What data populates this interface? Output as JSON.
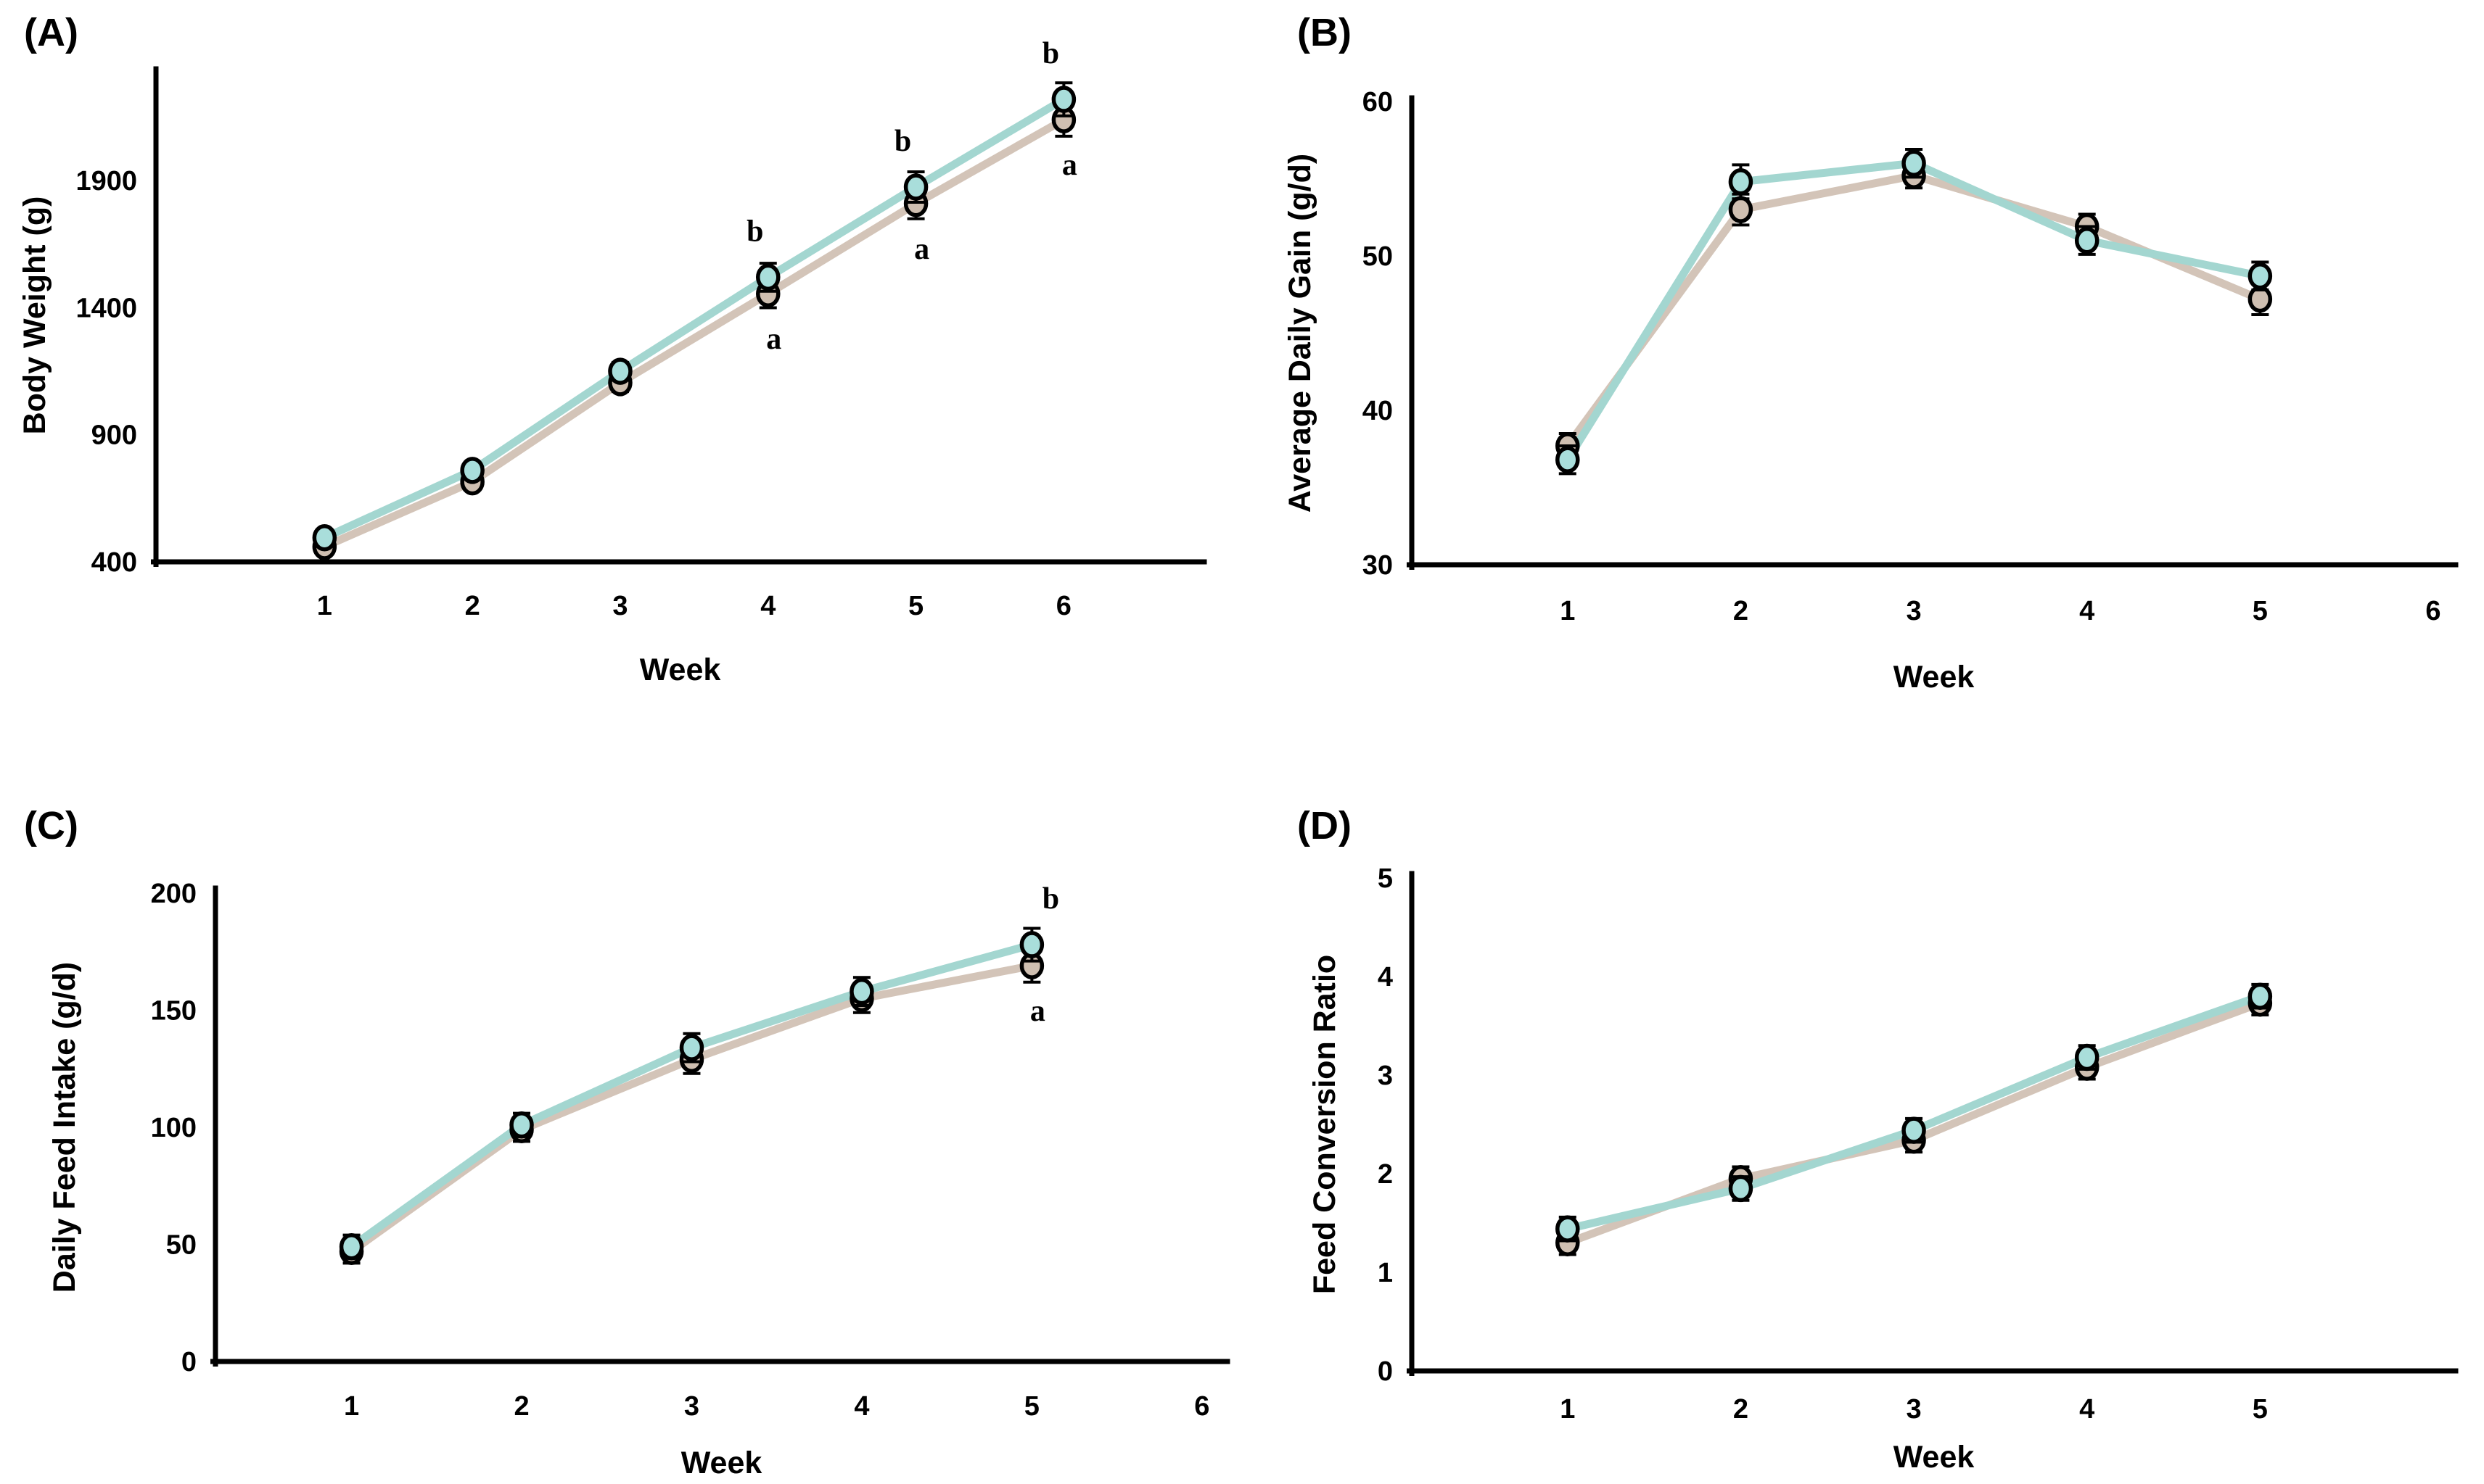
{
  "figure": {
    "background": "#ffffff",
    "description_visible_text_only": true
  },
  "colors": {
    "teal_line": "#a3d6d0",
    "teal_fill": "#a9dedb",
    "tan_line": "#d3c4b8",
    "tan_fill": "#cfbfb1",
    "marker_outline": "#000000",
    "error_bar": "#000000",
    "axis": "#000000",
    "text": "#000000"
  },
  "chart_data": [
    {
      "id": "A",
      "panel_label": "(A)",
      "type": "line",
      "xlabel": "Week",
      "ylabel": "Body Weight (g)",
      "x": [
        1,
        2,
        3,
        4,
        5,
        6
      ],
      "xticks": [
        1,
        2,
        3,
        4,
        5,
        6
      ],
      "xlim": [
        -0.14,
        6.95
      ],
      "ylim": [
        400,
        2340
      ],
      "yticks": [
        400,
        900,
        1400,
        1900
      ],
      "grid": false,
      "legend": "none",
      "series": [
        {
          "name": "tan",
          "color_key": "tan",
          "values": [
            460,
            715,
            1105,
            1455,
            1810,
            2140
          ],
          "errors": [
            30,
            30,
            35,
            55,
            60,
            65
          ],
          "sig": [
            "",
            "",
            "",
            "a",
            "a",
            "a"
          ],
          "sig_pos": "below"
        },
        {
          "name": "teal",
          "color_key": "teal",
          "values": [
            495,
            760,
            1150,
            1520,
            1875,
            2220
          ],
          "errors": [
            30,
            30,
            35,
            55,
            60,
            65
          ],
          "sig": [
            "",
            "",
            "",
            "b",
            "b",
            "b"
          ],
          "sig_pos": "above-left"
        }
      ]
    },
    {
      "id": "B",
      "panel_label": "(B)",
      "type": "line",
      "xlabel": "Week",
      "ylabel": "Average Daily Gain (g/d)",
      "x": [
        1,
        2,
        3,
        4,
        5
      ],
      "xticks": [
        1,
        2,
        3,
        4,
        5,
        6
      ],
      "xlim": [
        0.1,
        6.13
      ],
      "ylim": [
        30,
        60
      ],
      "yticks": [
        30,
        40,
        50,
        60
      ],
      "grid": false,
      "legend": "none",
      "series": [
        {
          "name": "tan",
          "color_key": "tan",
          "values": [
            37.7,
            53.0,
            55.2,
            51.9,
            47.2
          ],
          "errors": [
            0.8,
            1.0,
            0.8,
            0.8,
            1.0
          ],
          "sig": [
            "",
            "",
            "",
            "",
            ""
          ],
          "sig_pos": "below"
        },
        {
          "name": "teal",
          "color_key": "teal",
          "values": [
            36.8,
            54.8,
            56.0,
            51.0,
            48.7
          ],
          "errors": [
            0.9,
            1.1,
            0.9,
            0.9,
            0.9
          ],
          "sig": [
            "",
            "",
            "",
            "",
            ""
          ],
          "sig_pos": "above-left"
        }
      ]
    },
    {
      "id": "C",
      "panel_label": "(C)",
      "type": "line",
      "xlabel": "Week",
      "ylabel": "Daily Feed Intake (g/d)",
      "x": [
        1,
        2,
        3,
        4,
        5
      ],
      "xticks": [
        1,
        2,
        3,
        4,
        5,
        6
      ],
      "xlim": [
        0.2,
        6.15
      ],
      "ylim": [
        0,
        200
      ],
      "yticks": [
        0,
        50,
        100,
        150,
        200
      ],
      "grid": false,
      "legend": "none",
      "series": [
        {
          "name": "tan",
          "color_key": "tan",
          "values": [
            47,
            99,
            129,
            155,
            169
          ],
          "errors": [
            5,
            5,
            6,
            6,
            7
          ],
          "sig": [
            "",
            "",
            "",
            "",
            "a"
          ],
          "sig_pos": "below"
        },
        {
          "name": "teal",
          "color_key": "teal",
          "values": [
            49,
            101,
            134,
            158,
            178
          ],
          "errors": [
            5,
            5,
            6,
            6,
            7
          ],
          "sig": [
            "",
            "",
            "",
            "",
            "b"
          ],
          "sig_pos": "above-right"
        }
      ]
    },
    {
      "id": "D",
      "panel_label": "(D)",
      "type": "line",
      "xlabel": "Week",
      "ylabel": "Feed Conversion Ratio",
      "x": [
        1,
        2,
        3,
        4,
        5
      ],
      "xticks": [
        1,
        2,
        3,
        4,
        5
      ],
      "xlim": [
        0.1,
        6.13
      ],
      "ylim": [
        0,
        5
      ],
      "yticks": [
        0,
        1,
        2,
        3,
        4,
        5
      ],
      "grid": false,
      "legend": "none",
      "series": [
        {
          "name": "tan",
          "color_key": "tan",
          "values": [
            1.3,
            1.95,
            2.34,
            3.08,
            3.73
          ],
          "errors": [
            0.12,
            0.12,
            0.12,
            0.12,
            0.12
          ],
          "sig": [
            "",
            "",
            "",
            "",
            ""
          ],
          "sig_pos": "below"
        },
        {
          "name": "teal",
          "color_key": "teal",
          "values": [
            1.44,
            1.85,
            2.44,
            3.18,
            3.8
          ],
          "errors": [
            0.12,
            0.12,
            0.12,
            0.12,
            0.12
          ],
          "sig": [
            "",
            "",
            "",
            "",
            ""
          ],
          "sig_pos": "above-left"
        }
      ]
    }
  ]
}
